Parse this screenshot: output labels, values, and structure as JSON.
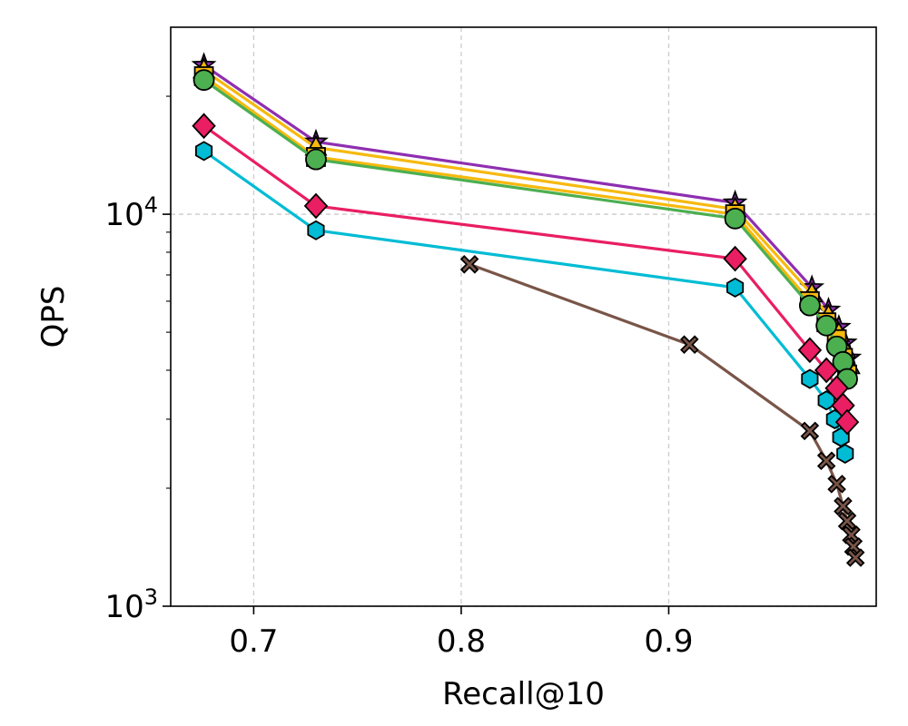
{
  "chart_data": {
    "type": "line",
    "title": "",
    "xlabel": "Recall@10",
    "ylabel": "QPS",
    "xscale": "linear",
    "yscale": "log",
    "xlim": [
      0.66,
      1.0
    ],
    "ylim": [
      1000,
      30000
    ],
    "xticks": [
      {
        "value": 0.7,
        "label": "0.7"
      },
      {
        "value": 0.8,
        "label": "0.8"
      },
      {
        "value": 0.9,
        "label": "0.9"
      }
    ],
    "yticks": [
      {
        "value": 1000,
        "base": "10",
        "exp": "3"
      },
      {
        "value": 10000,
        "base": "10",
        "exp": "4"
      }
    ],
    "grid": true,
    "legend": "none",
    "series": [
      {
        "name": "purple-star",
        "color": "#8e2fb0",
        "marker": "star",
        "x": [
          0.676,
          0.73,
          0.932,
          0.969,
          0.977,
          0.982,
          0.985,
          0.987
        ],
        "y": [
          24000,
          15300,
          10700,
          6500,
          5700,
          5150,
          4700,
          4300
        ]
      },
      {
        "name": "orange-triangle",
        "color": "#f6b90e",
        "marker": "triangle",
        "x": [
          0.676,
          0.73,
          0.932,
          0.969,
          0.977,
          0.982,
          0.985,
          0.987
        ],
        "y": [
          23300,
          14800,
          10300,
          6250,
          5500,
          4950,
          4500,
          4100
        ]
      },
      {
        "name": "black-square",
        "color": "#f6b90e",
        "marker": "square",
        "x": [
          0.676,
          0.73,
          0.932,
          0.968,
          0.976,
          0.981,
          0.984,
          0.986
        ],
        "y": [
          22500,
          14000,
          10000,
          6000,
          5300,
          4800,
          4300,
          3900
        ]
      },
      {
        "name": "green-circle",
        "color": "#4caf50",
        "marker": "circle",
        "x": [
          0.676,
          0.73,
          0.932,
          0.968,
          0.976,
          0.981,
          0.984,
          0.986
        ],
        "y": [
          22000,
          13800,
          9750,
          5850,
          5200,
          4600,
          4200,
          3800
        ]
      },
      {
        "name": "cyan-hexagon",
        "color": "#00bcd4",
        "marker": "hexagon",
        "x": [
          0.676,
          0.73,
          0.932,
          0.968,
          0.976,
          0.98,
          0.983,
          0.985
        ],
        "y": [
          14500,
          9100,
          6500,
          3800,
          3350,
          3000,
          2700,
          2450
        ]
      },
      {
        "name": "red-diamond",
        "color": "#e91e63",
        "marker": "diamond",
        "x": [
          0.676,
          0.73,
          0.932,
          0.968,
          0.976,
          0.981,
          0.984,
          0.986
        ],
        "y": [
          16800,
          10500,
          7700,
          4500,
          4000,
          3600,
          3250,
          2950
        ]
      },
      {
        "name": "brown-x",
        "color": "#795548",
        "marker": "x",
        "x": [
          0.804,
          0.91,
          0.968,
          0.976,
          0.981,
          0.984,
          0.986,
          0.988,
          0.989,
          0.99
        ],
        "y": [
          7450,
          4650,
          2800,
          2350,
          2050,
          1800,
          1650,
          1520,
          1420,
          1330
        ]
      }
    ]
  }
}
